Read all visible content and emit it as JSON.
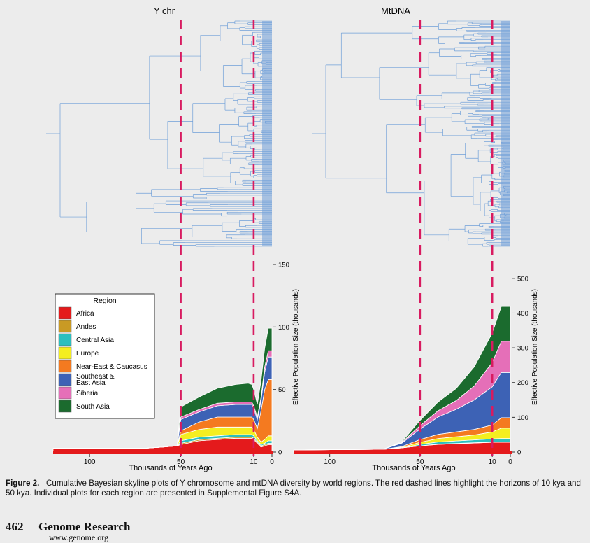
{
  "figure": {
    "panels": [
      {
        "title": "Y chr",
        "xlabel": "Thousands of Years Ago",
        "ylabel": "Effective Population Size (thousands)"
      },
      {
        "title": "MtDNA",
        "xlabel": "Thousands of Years Ago",
        "ylabel": "Effective Population Size (thousands)"
      }
    ],
    "legend_title": "Region",
    "caption_label": "Figure 2.",
    "caption_text": "Cumulative Bayesian skyline plots of Y chromosome and mtDNA diversity by world regions. The red dashed lines highlight the horizons of 10 kya and 50 kya. Individual plots for each region are presented in Supplemental Figure S4A."
  },
  "footer": {
    "page_number": "462",
    "journal": "Genome Research",
    "url": "www.genome.org"
  },
  "colors": {
    "tree": "#6f9fd8",
    "dashed": "#d81b60",
    "Africa": "#e41a1c",
    "Andes": "#c99a24",
    "Central Asia": "#2bbfbf",
    "Europe": "#f4ee20",
    "Near-East & Caucasus": "#f47a20",
    "Southeast & East Asia": "#3d62b5",
    "Siberia": "#e56fb8",
    "South Asia": "#1b6b2e"
  },
  "chart_data": [
    {
      "type": "area",
      "title": "Y chr",
      "xlabel": "Thousands of Years Ago",
      "ylabel": "Effective Population Size (thousands)",
      "x_ticks": [
        100,
        50,
        10,
        0
      ],
      "y_ticks": [
        0,
        50,
        100,
        150
      ],
      "xlim": [
        120,
        0
      ],
      "ylim": [
        0,
        150
      ],
      "x": [
        120,
        70,
        60,
        52,
        50,
        40,
        30,
        20,
        13,
        11,
        10,
        8,
        6,
        4,
        2,
        0
      ],
      "series": [
        {
          "name": "Africa",
          "values": [
            3,
            3,
            4,
            5,
            6,
            9,
            10,
            11,
            11,
            11,
            10,
            7,
            4,
            5,
            6,
            6
          ]
        },
        {
          "name": "Andes",
          "values": [
            0,
            0,
            0,
            0,
            1,
            1,
            1,
            1,
            1,
            1,
            1,
            1,
            1,
            1,
            1,
            1
          ]
        },
        {
          "name": "Central Asia",
          "values": [
            0,
            0,
            0,
            0,
            2,
            2,
            2,
            2,
            2,
            2,
            2,
            1,
            1,
            1,
            2,
            2
          ]
        },
        {
          "name": "Europe",
          "values": [
            0,
            0,
            0,
            0,
            5,
            6,
            7,
            6,
            6,
            6,
            5,
            3,
            2,
            3,
            4,
            4
          ]
        },
        {
          "name": "Near-East & Caucasus",
          "values": [
            0,
            0,
            0,
            0,
            3,
            6,
            8,
            8,
            8,
            8,
            8,
            7,
            25,
            40,
            45,
            45
          ]
        },
        {
          "name": "Southeast & East Asia",
          "values": [
            0,
            0,
            0,
            0,
            9,
            8,
            9,
            10,
            10,
            10,
            9,
            7,
            8,
            14,
            18,
            18
          ]
        },
        {
          "name": "Siberia",
          "values": [
            0,
            0,
            0,
            0,
            2,
            2,
            2,
            2,
            2,
            2,
            2,
            2,
            3,
            4,
            5,
            5
          ]
        },
        {
          "name": "South Asia",
          "values": [
            0,
            0,
            0,
            0,
            8,
            10,
            12,
            14,
            15,
            14,
            13,
            10,
            13,
            15,
            18,
            18
          ]
        }
      ]
    },
    {
      "type": "area",
      "title": "MtDNA",
      "xlabel": "Thousands of Years Ago",
      "ylabel": "Effective Population Size (thousands)",
      "x_ticks": [
        100,
        50,
        10,
        0
      ],
      "y_ticks": [
        0,
        100,
        200,
        300,
        400,
        500
      ],
      "xlim": [
        120,
        0
      ],
      "ylim": [
        0,
        540
      ],
      "x": [
        120,
        70,
        60,
        50,
        40,
        30,
        20,
        10,
        5,
        0
      ],
      "series": [
        {
          "name": "Africa",
          "values": [
            6,
            8,
            12,
            18,
            22,
            24,
            26,
            28,
            28,
            28
          ]
        },
        {
          "name": "Andes",
          "values": [
            0,
            0,
            0,
            0,
            1,
            1,
            1,
            1,
            1,
            1
          ]
        },
        {
          "name": "Central Asia",
          "values": [
            0,
            0,
            0,
            4,
            6,
            7,
            8,
            9,
            10,
            10
          ]
        },
        {
          "name": "Europe",
          "values": [
            0,
            0,
            2,
            6,
            10,
            12,
            14,
            20,
            30,
            30
          ]
        },
        {
          "name": "Near-East & Caucasus",
          "values": [
            0,
            0,
            2,
            8,
            12,
            14,
            16,
            20,
            30,
            30
          ]
        },
        {
          "name": "Southeast & East Asia",
          "values": [
            0,
            1,
            10,
            30,
            50,
            65,
            85,
            110,
            130,
            130
          ]
        },
        {
          "name": "Siberia",
          "values": [
            0,
            0,
            2,
            10,
            18,
            25,
            40,
            70,
            90,
            90
          ]
        },
        {
          "name": "South Asia",
          "values": [
            0,
            0,
            2,
            15,
            25,
            35,
            55,
            85,
            100,
            100
          ]
        }
      ]
    }
  ]
}
